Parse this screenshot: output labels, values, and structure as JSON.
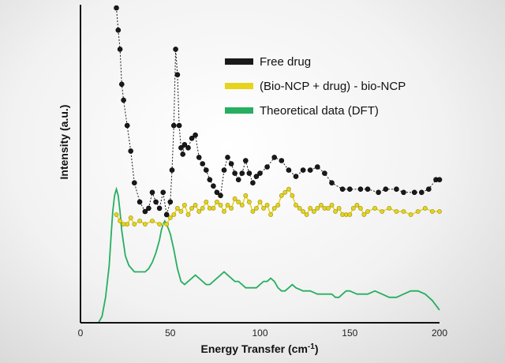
{
  "chart_data": {
    "type": "line",
    "xlabel": "Energy Transfer (cm",
    "xlabel_sup": "-1",
    "xlabel_end": ")",
    "ylabel": "Intensity (a.u.)",
    "xlim": [
      0,
      200
    ],
    "ylim": [
      0,
      100
    ],
    "x_ticks": [
      0,
      50,
      100,
      150,
      200
    ],
    "grid": false,
    "legend_position": "top-right",
    "series": [
      {
        "name": "Free drug",
        "color": "#1a1a1a",
        "x": [
          20,
          21,
          22,
          23,
          24,
          26,
          28,
          30,
          33,
          36,
          38,
          40,
          42,
          44,
          46,
          48,
          50,
          51,
          52,
          53,
          54,
          55,
          56,
          57,
          58,
          60,
          62,
          64,
          66,
          68,
          70,
          72,
          74,
          76,
          78,
          80,
          82,
          84,
          86,
          88,
          90,
          92,
          94,
          96,
          98,
          100,
          104,
          108,
          112,
          116,
          120,
          124,
          128,
          132,
          136,
          140,
          146,
          150,
          156,
          160,
          166,
          170,
          176,
          180,
          186,
          190,
          194,
          198,
          200
        ],
        "y": [
          99,
          92,
          86,
          75,
          70,
          62,
          54,
          44,
          38,
          35,
          36,
          41,
          38,
          36,
          41,
          34,
          38,
          48,
          62,
          86,
          78,
          62,
          55,
          53,
          56,
          55,
          58,
          59,
          52,
          50,
          48,
          45,
          43,
          41,
          40,
          48,
          52,
          50,
          47,
          45,
          47,
          51,
          47,
          44,
          46,
          47,
          49,
          52,
          51,
          48,
          46,
          48,
          48,
          49,
          47,
          44,
          42,
          42,
          42,
          42,
          41,
          42,
          42,
          41,
          41,
          41,
          42,
          45,
          45
        ]
      },
      {
        "name": "(Bio-NCP + drug) - bio-NCP",
        "color": "#e6d41c",
        "x": [
          20,
          22,
          24,
          26,
          28,
          30,
          33,
          36,
          40,
          44,
          48,
          50,
          52,
          54,
          56,
          58,
          60,
          62,
          64,
          66,
          68,
          70,
          72,
          74,
          76,
          78,
          80,
          82,
          84,
          86,
          88,
          90,
          92,
          94,
          96,
          98,
          100,
          102,
          104,
          106,
          108,
          110,
          112,
          114,
          116,
          118,
          120,
          122,
          124,
          126,
          128,
          130,
          132,
          134,
          136,
          138,
          140,
          142,
          144,
          146,
          148,
          150,
          152,
          154,
          156,
          158,
          160,
          164,
          168,
          172,
          176,
          180,
          184,
          188,
          192,
          196,
          200
        ],
        "y": [
          34,
          32,
          31,
          31,
          33,
          31,
          32,
          31,
          32,
          31,
          31,
          33,
          34,
          36,
          35,
          37,
          34,
          36,
          37,
          35,
          36,
          38,
          36,
          36,
          38,
          37,
          35,
          37,
          36,
          39,
          38,
          37,
          40,
          38,
          35,
          36,
          38,
          36,
          37,
          34,
          36,
          37,
          40,
          41,
          42,
          40,
          37,
          36,
          35,
          34,
          36,
          35,
          36,
          37,
          36,
          36,
          37,
          35,
          36,
          34,
          34,
          34,
          36,
          37,
          36,
          34,
          35,
          36,
          35,
          36,
          35,
          35,
          34,
          35,
          36,
          35,
          35
        ]
      },
      {
        "name": "Theoretical data (DFT)",
        "color": "#27ae60",
        "x": [
          5,
          8,
          10,
          12,
          14,
          16,
          17,
          18,
          19,
          20,
          21,
          22,
          23,
          24,
          25,
          27,
          30,
          33,
          36,
          38,
          40,
          42,
          44,
          45,
          46,
          47,
          48,
          50,
          52,
          54,
          56,
          58,
          60,
          62,
          64,
          66,
          68,
          70,
          72,
          74,
          76,
          78,
          80,
          82,
          84,
          86,
          88,
          90,
          92,
          94,
          96,
          98,
          100,
          102,
          104,
          106,
          108,
          110,
          112,
          114,
          116,
          118,
          120,
          124,
          128,
          132,
          136,
          140,
          142,
          144,
          146,
          148,
          150,
          154,
          158,
          160,
          164,
          168,
          172,
          176,
          180,
          184,
          188,
          192,
          196,
          200
        ],
        "y": [
          0,
          0,
          0,
          2,
          8,
          18,
          27,
          35,
          40,
          42,
          40,
          35,
          29,
          25,
          21,
          18,
          16,
          16,
          16,
          17,
          19,
          22,
          26,
          29,
          31,
          32,
          31,
          28,
          23,
          17,
          13,
          12,
          13,
          14,
          15,
          14,
          13,
          12,
          12,
          13,
          14,
          15,
          16,
          15,
          14,
          13,
          13,
          12,
          11,
          11,
          11,
          11,
          12,
          13,
          13,
          14,
          13,
          11,
          10,
          10,
          11,
          12,
          11,
          10,
          10,
          9,
          9,
          9,
          8,
          8,
          9,
          10,
          10,
          9,
          9,
          9,
          10,
          9,
          8,
          8,
          9,
          10,
          10,
          9,
          7,
          4
        ]
      }
    ]
  }
}
